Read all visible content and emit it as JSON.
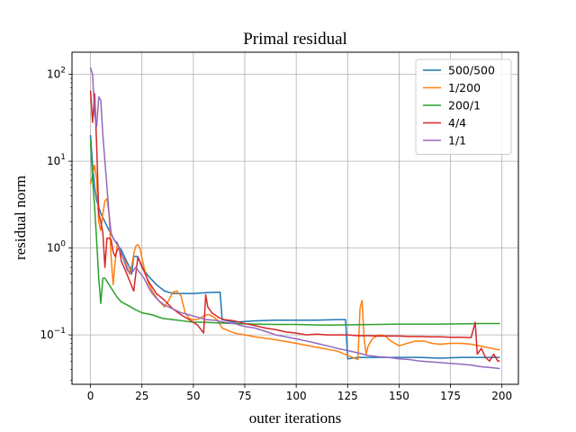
{
  "chart_data": {
    "type": "line",
    "title": "Primal residual",
    "xlabel": "outer iterations",
    "ylabel": "residual norm",
    "yscale": "log",
    "xlim": [
      -9,
      208
    ],
    "ylim": [
      0.027,
      180
    ],
    "xticks": [
      0,
      25,
      50,
      75,
      100,
      125,
      150,
      175,
      200
    ],
    "yticks": [
      {
        "value": 0.1,
        "base": "10",
        "exp": "−1"
      },
      {
        "value": 1,
        "base": "10",
        "exp": "0"
      },
      {
        "value": 10,
        "base": "10",
        "exp": "1"
      },
      {
        "value": 100,
        "base": "10",
        "exp": "2"
      }
    ],
    "grid": true,
    "legend_position": "top-right",
    "series": [
      {
        "name": "500/500",
        "color": "#1f77b4",
        "points": [
          [
            0,
            20
          ],
          [
            1,
            9
          ],
          [
            2,
            5
          ],
          [
            3,
            3.5
          ],
          [
            5,
            2.5
          ],
          [
            7,
            2.0
          ],
          [
            9,
            1.6
          ],
          [
            11,
            1.3
          ],
          [
            13,
            1.1
          ],
          [
            15,
            0.95
          ],
          [
            17,
            0.75
          ],
          [
            19,
            0.6
          ],
          [
            20,
            0.5
          ],
          [
            21,
            0.8
          ],
          [
            23,
            0.8
          ],
          [
            25,
            0.6
          ],
          [
            28,
            0.48
          ],
          [
            32,
            0.38
          ],
          [
            36,
            0.32
          ],
          [
            40,
            0.3
          ],
          [
            45,
            0.3
          ],
          [
            50,
            0.3
          ],
          [
            55,
            0.305
          ],
          [
            60,
            0.31
          ],
          [
            63,
            0.31
          ],
          [
            64,
            0.15
          ],
          [
            70,
            0.14
          ],
          [
            80,
            0.145
          ],
          [
            90,
            0.148
          ],
          [
            100,
            0.148
          ],
          [
            110,
            0.148
          ],
          [
            120,
            0.15
          ],
          [
            124,
            0.15
          ],
          [
            125,
            0.053
          ],
          [
            130,
            0.055
          ],
          [
            140,
            0.055
          ],
          [
            150,
            0.055
          ],
          [
            160,
            0.055
          ],
          [
            170,
            0.054
          ],
          [
            180,
            0.055
          ],
          [
            190,
            0.055
          ],
          [
            199,
            0.055
          ]
        ]
      },
      {
        "name": "1/200",
        "color": "#ff7f0e",
        "points": [
          [
            0,
            5.5
          ],
          [
            1,
            7
          ],
          [
            2,
            9
          ],
          [
            3,
            6
          ],
          [
            4,
            2
          ],
          [
            5,
            1.6
          ],
          [
            6,
            2.5
          ],
          [
            7,
            3.5
          ],
          [
            8,
            3.7
          ],
          [
            9,
            2.5
          ],
          [
            10,
            0.8
          ],
          [
            11,
            0.38
          ],
          [
            12,
            0.7
          ],
          [
            13,
            1.1
          ],
          [
            14,
            1.0
          ],
          [
            15,
            0.85
          ],
          [
            17,
            0.7
          ],
          [
            19,
            0.5
          ],
          [
            20,
            0.62
          ],
          [
            21,
            0.85
          ],
          [
            22,
            1.05
          ],
          [
            23,
            1.1
          ],
          [
            24,
            1.0
          ],
          [
            26,
            0.6
          ],
          [
            28,
            0.4
          ],
          [
            30,
            0.32
          ],
          [
            33,
            0.25
          ],
          [
            36,
            0.21
          ],
          [
            38,
            0.25
          ],
          [
            40,
            0.31
          ],
          [
            42,
            0.32
          ],
          [
            44,
            0.28
          ],
          [
            46,
            0.18
          ],
          [
            48,
            0.155
          ],
          [
            50,
            0.15
          ],
          [
            52,
            0.15
          ],
          [
            54,
            0.16
          ],
          [
            56,
            0.17
          ],
          [
            58,
            0.17
          ],
          [
            60,
            0.16
          ],
          [
            62,
            0.145
          ],
          [
            64,
            0.12
          ],
          [
            66,
            0.115
          ],
          [
            70,
            0.105
          ],
          [
            75,
            0.1
          ],
          [
            80,
            0.095
          ],
          [
            90,
            0.088
          ],
          [
            100,
            0.08
          ],
          [
            110,
            0.072
          ],
          [
            120,
            0.065
          ],
          [
            130,
            0.052
          ],
          [
            131,
            0.2
          ],
          [
            132,
            0.25
          ],
          [
            133,
            0.09
          ],
          [
            134,
            0.06
          ],
          [
            135,
            0.075
          ],
          [
            137,
            0.09
          ],
          [
            140,
            0.1
          ],
          [
            143,
            0.098
          ],
          [
            146,
            0.085
          ],
          [
            150,
            0.075
          ],
          [
            154,
            0.08
          ],
          [
            158,
            0.085
          ],
          [
            162,
            0.085
          ],
          [
            166,
            0.08
          ],
          [
            170,
            0.078
          ],
          [
            175,
            0.08
          ],
          [
            180,
            0.08
          ],
          [
            185,
            0.078
          ],
          [
            190,
            0.074
          ],
          [
            195,
            0.07
          ],
          [
            199,
            0.067
          ]
        ]
      },
      {
        "name": "200/1",
        "color": "#2ca02c",
        "points": [
          [
            0,
            18
          ],
          [
            1,
            6
          ],
          [
            2,
            3
          ],
          [
            3,
            1.2
          ],
          [
            4,
            0.45
          ],
          [
            5,
            0.23
          ],
          [
            6,
            0.45
          ],
          [
            7,
            0.45
          ],
          [
            9,
            0.38
          ],
          [
            11,
            0.32
          ],
          [
            13,
            0.27
          ],
          [
            15,
            0.24
          ],
          [
            18,
            0.22
          ],
          [
            21,
            0.2
          ],
          [
            25,
            0.18
          ],
          [
            30,
            0.17
          ],
          [
            35,
            0.155
          ],
          [
            40,
            0.15
          ],
          [
            45,
            0.145
          ],
          [
            50,
            0.14
          ],
          [
            55,
            0.14
          ],
          [
            60,
            0.138
          ],
          [
            70,
            0.135
          ],
          [
            80,
            0.133
          ],
          [
            90,
            0.132
          ],
          [
            100,
            0.132
          ],
          [
            110,
            0.13
          ],
          [
            120,
            0.13
          ],
          [
            130,
            0.131
          ],
          [
            140,
            0.132
          ],
          [
            150,
            0.133
          ],
          [
            160,
            0.133
          ],
          [
            170,
            0.133
          ],
          [
            180,
            0.134
          ],
          [
            190,
            0.135
          ],
          [
            199,
            0.135
          ]
        ]
      },
      {
        "name": "4/4",
        "color": "#d62728",
        "points": [
          [
            0,
            65
          ],
          [
            1,
            28
          ],
          [
            2,
            60
          ],
          [
            3,
            15
          ],
          [
            4,
            2.5
          ],
          [
            5,
            2
          ],
          [
            6,
            1.5
          ],
          [
            7,
            0.6
          ],
          [
            8,
            1.3
          ],
          [
            9,
            1.3
          ],
          [
            10,
            1.25
          ],
          [
            11,
            0.9
          ],
          [
            12,
            0.8
          ],
          [
            13,
            0.95
          ],
          [
            14,
            1.0
          ],
          [
            15,
            0.7
          ],
          [
            17,
            0.55
          ],
          [
            19,
            0.42
          ],
          [
            21,
            0.32
          ],
          [
            23,
            0.78
          ],
          [
            25,
            0.62
          ],
          [
            28,
            0.42
          ],
          [
            32,
            0.3
          ],
          [
            36,
            0.25
          ],
          [
            40,
            0.2
          ],
          [
            44,
            0.17
          ],
          [
            48,
            0.15
          ],
          [
            52,
            0.13
          ],
          [
            55,
            0.105
          ],
          [
            56,
            0.29
          ],
          [
            57,
            0.21
          ],
          [
            59,
            0.18
          ],
          [
            62,
            0.16
          ],
          [
            65,
            0.15
          ],
          [
            70,
            0.145
          ],
          [
            75,
            0.135
          ],
          [
            80,
            0.128
          ],
          [
            85,
            0.12
          ],
          [
            90,
            0.115
          ],
          [
            95,
            0.108
          ],
          [
            100,
            0.105
          ],
          [
            105,
            0.1
          ],
          [
            110,
            0.102
          ],
          [
            115,
            0.1
          ],
          [
            120,
            0.1
          ],
          [
            125,
            0.1
          ],
          [
            130,
            0.098
          ],
          [
            135,
            0.098
          ],
          [
            140,
            0.097
          ],
          [
            145,
            0.097
          ],
          [
            150,
            0.097
          ],
          [
            155,
            0.096
          ],
          [
            160,
            0.096
          ],
          [
            165,
            0.095
          ],
          [
            170,
            0.095
          ],
          [
            175,
            0.094
          ],
          [
            180,
            0.094
          ],
          [
            185,
            0.093
          ],
          [
            187,
            0.14
          ],
          [
            188,
            0.06
          ],
          [
            190,
            0.07
          ],
          [
            192,
            0.055
          ],
          [
            194,
            0.05
          ],
          [
            196,
            0.06
          ],
          [
            198,
            0.05
          ],
          [
            199,
            0.05
          ]
        ]
      },
      {
        "name": "1/1",
        "color": "#9467bd",
        "points": [
          [
            0,
            120
          ],
          [
            1,
            100
          ],
          [
            2,
            35
          ],
          [
            3,
            25
          ],
          [
            4,
            55
          ],
          [
            5,
            50
          ],
          [
            6,
            20
          ],
          [
            7,
            10
          ],
          [
            8,
            5
          ],
          [
            9,
            2.5
          ],
          [
            10,
            1.5
          ],
          [
            11,
            1.3
          ],
          [
            12,
            1.2
          ],
          [
            13,
            1.15
          ],
          [
            14,
            1.0
          ],
          [
            16,
            0.75
          ],
          [
            18,
            0.55
          ],
          [
            20,
            0.52
          ],
          [
            22,
            0.6
          ],
          [
            24,
            0.52
          ],
          [
            26,
            0.45
          ],
          [
            28,
            0.36
          ],
          [
            30,
            0.3
          ],
          [
            33,
            0.25
          ],
          [
            36,
            0.22
          ],
          [
            40,
            0.2
          ],
          [
            44,
            0.18
          ],
          [
            48,
            0.17
          ],
          [
            52,
            0.16
          ],
          [
            56,
            0.15
          ],
          [
            60,
            0.148
          ],
          [
            65,
            0.14
          ],
          [
            70,
            0.135
          ],
          [
            75,
            0.125
          ],
          [
            80,
            0.12
          ],
          [
            85,
            0.11
          ],
          [
            90,
            0.1
          ],
          [
            95,
            0.095
          ],
          [
            100,
            0.09
          ],
          [
            105,
            0.085
          ],
          [
            110,
            0.08
          ],
          [
            115,
            0.075
          ],
          [
            120,
            0.07
          ],
          [
            125,
            0.066
          ],
          [
            130,
            0.062
          ],
          [
            135,
            0.058
          ],
          [
            140,
            0.056
          ],
          [
            145,
            0.055
          ],
          [
            150,
            0.053
          ],
          [
            155,
            0.052
          ],
          [
            160,
            0.05
          ],
          [
            165,
            0.049
          ],
          [
            170,
            0.048
          ],
          [
            175,
            0.047
          ],
          [
            180,
            0.046
          ],
          [
            185,
            0.045
          ],
          [
            190,
            0.043
          ],
          [
            195,
            0.042
          ],
          [
            199,
            0.041
          ]
        ]
      }
    ]
  }
}
